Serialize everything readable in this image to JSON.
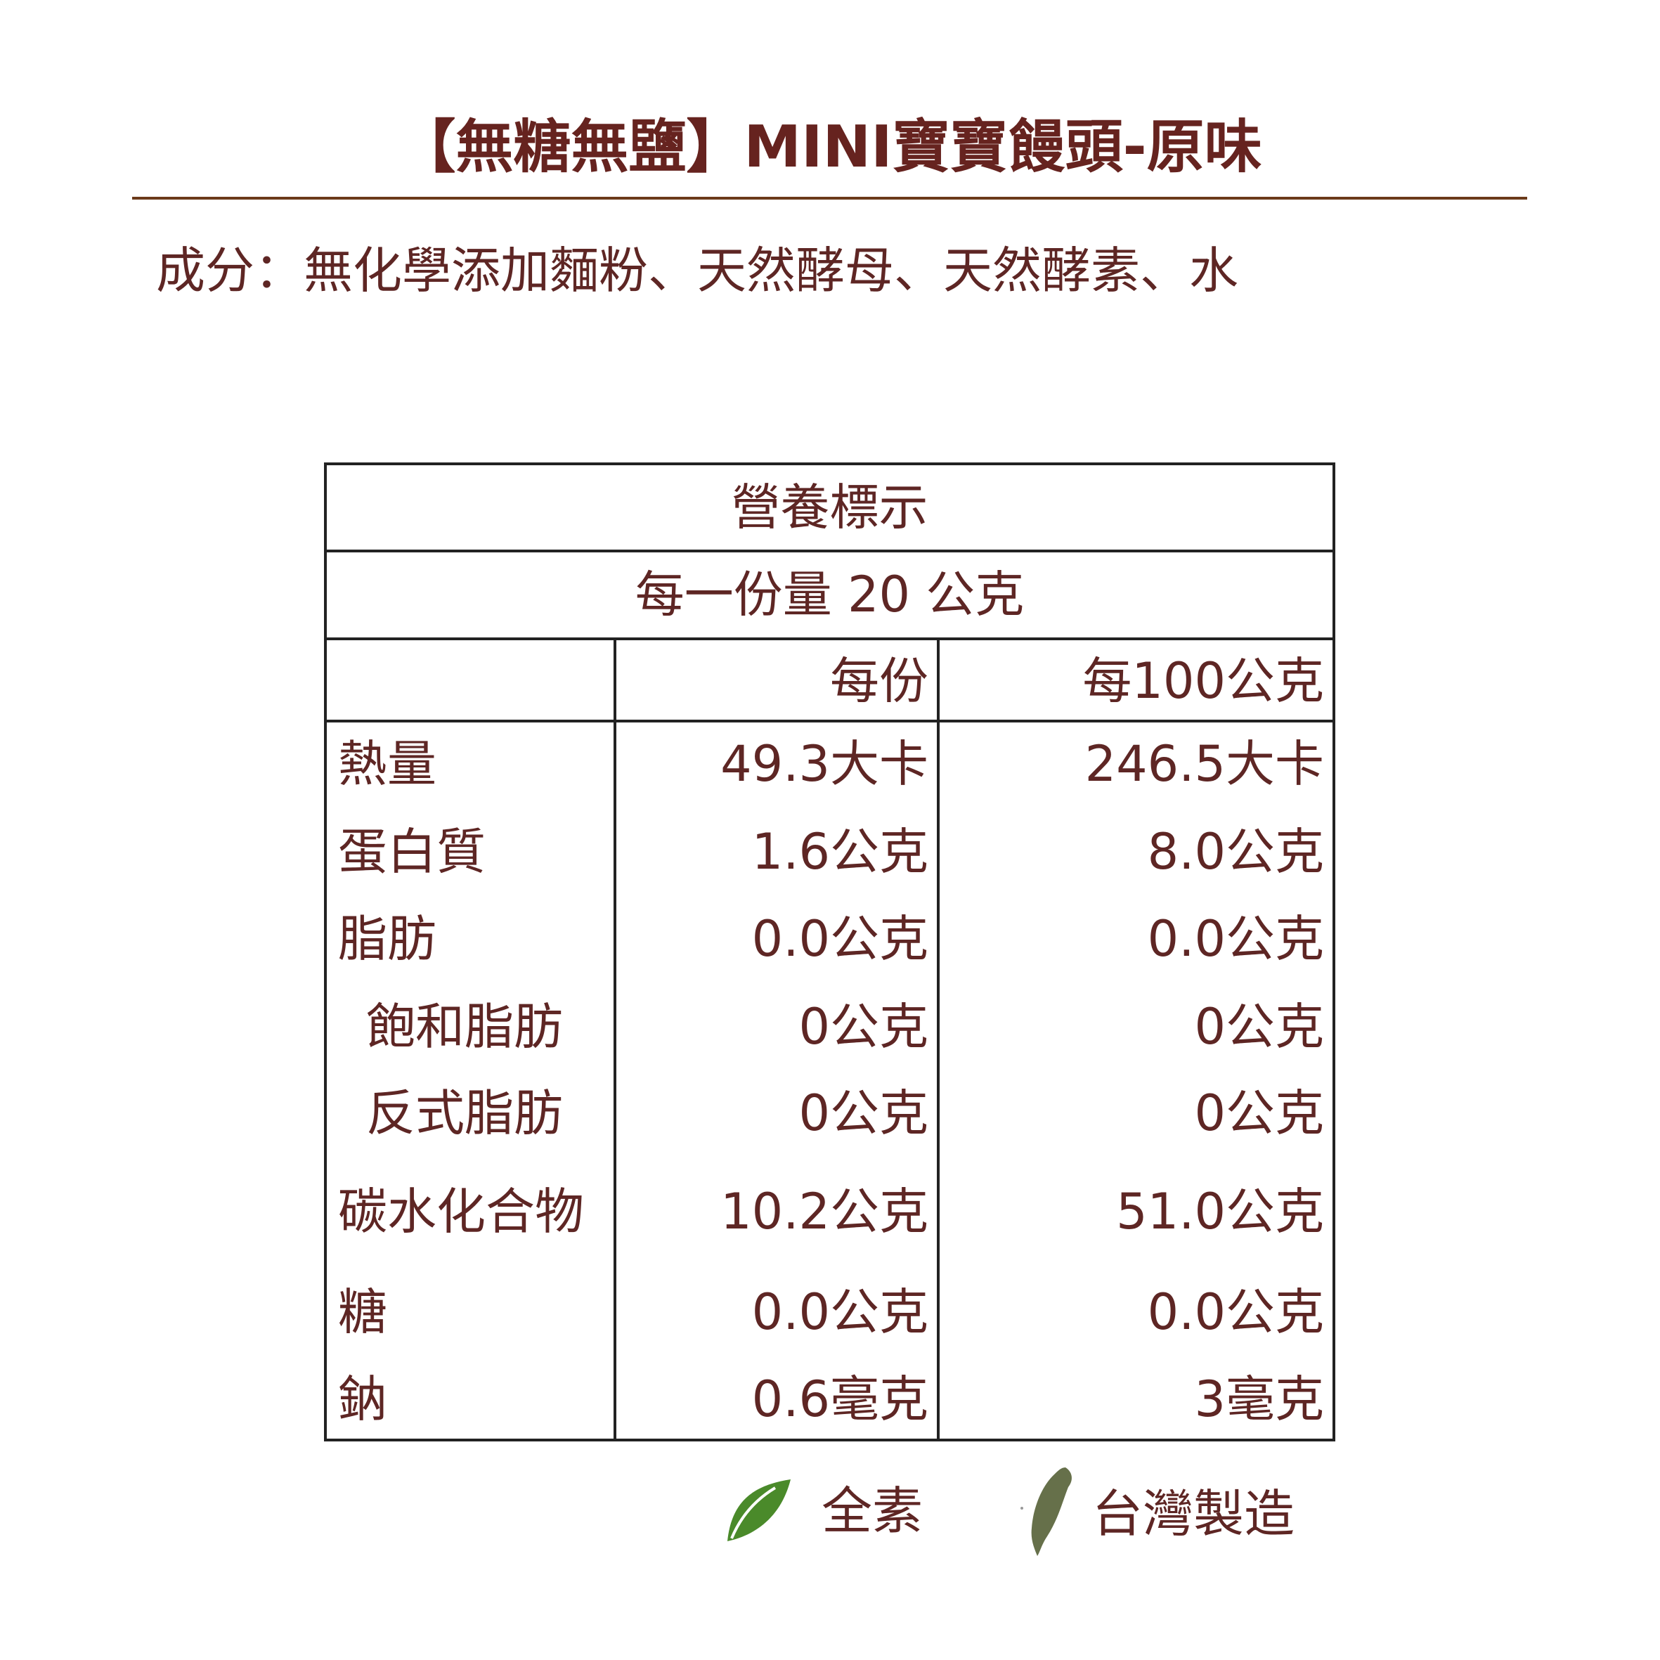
{
  "title": "【無糖無鹽】MINI寶寶饅頭-原味",
  "ingredients": "成分：無化學添加麵粉、天然酵母、天然酵素、水",
  "nutrition": {
    "heading": "營養標示",
    "serving": "每一份量 20 公克",
    "columns": [
      "",
      "每份",
      "每100公克"
    ],
    "rows": [
      {
        "name": "熱量",
        "per_serving": "49.3大卡",
        "per_100g": "246.5大卡",
        "indent": false
      },
      {
        "name": "蛋白質",
        "per_serving": "1.6公克",
        "per_100g": "8.0公克",
        "indent": false
      },
      {
        "name": "脂肪",
        "per_serving": "0.0公克",
        "per_100g": "0.0公克",
        "indent": false
      },
      {
        "name": "飽和脂肪",
        "per_serving": "0公克",
        "per_100g": "0公克",
        "indent": true
      },
      {
        "name": "反式脂肪",
        "per_serving": "0公克",
        "per_100g": "0公克",
        "indent": true
      },
      {
        "name": "碳水化合物",
        "per_serving": "10.2公克",
        "per_100g": "51.0公克",
        "indent": false
      },
      {
        "name": "糖",
        "per_serving": "0.0公克",
        "per_100g": "0.0公克",
        "indent": false
      },
      {
        "name": "鈉",
        "per_serving": "0.6毫克",
        "per_100g": "3毫克",
        "indent": false
      }
    ]
  },
  "badges": [
    {
      "icon": "leaf-icon",
      "label": "全素",
      "color": "#4a8a2a"
    },
    {
      "icon": "taiwan-map-icon",
      "label": "台灣製造",
      "color": "#66704a"
    }
  ]
}
